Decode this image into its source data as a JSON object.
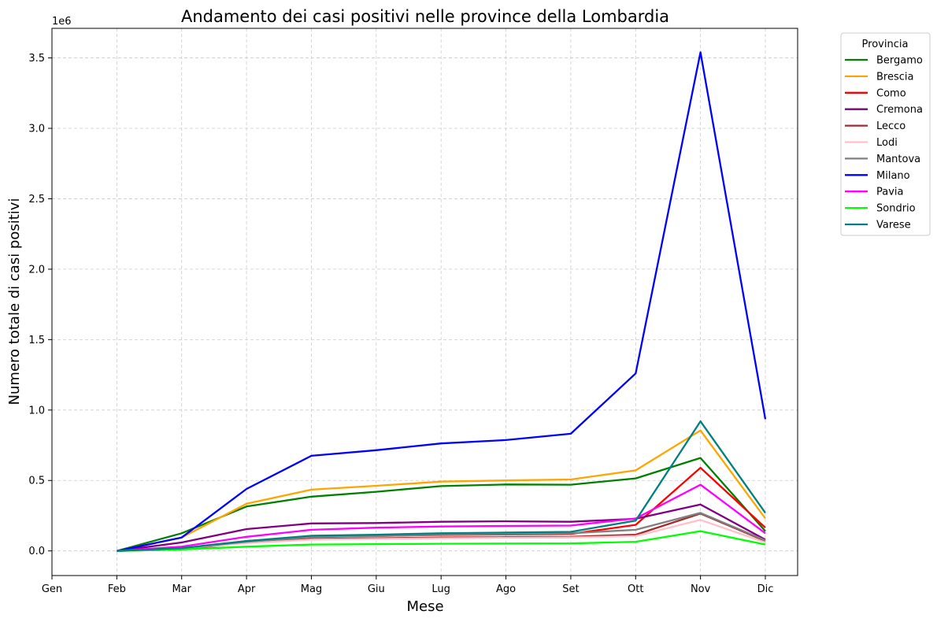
{
  "chart_data": {
    "type": "line",
    "title": "Andamento dei casi positivi nelle province della Lombardia",
    "xlabel": "Mese",
    "ylabel": "Numero totale di casi positivi",
    "y_offset_label": "1e6",
    "y_scale": 1000000,
    "ylim": [
      -175000,
      3710000
    ],
    "yticks": [
      0,
      500000,
      1000000,
      1500000,
      2000000,
      2500000,
      3000000,
      3500000
    ],
    "ytick_labels": [
      "0.0",
      "0.5",
      "1.0",
      "1.5",
      "2.0",
      "2.5",
      "3.0",
      "3.5"
    ],
    "categories": [
      "Gen",
      "Feb",
      "Mar",
      "Apr",
      "Mag",
      "Giu",
      "Lug",
      "Ago",
      "Set",
      "Ott",
      "Nov",
      "Dic"
    ],
    "grid": true,
    "legend_title": "Provincia",
    "legend_position": "outside-top-right",
    "series": [
      {
        "name": "Bergamo",
        "color": "#008000",
        "values": [
          null,
          0,
          125000,
          315000,
          385000,
          420000,
          460000,
          472000,
          470000,
          515000,
          660000,
          140000
        ]
      },
      {
        "name": "Brescia",
        "color": "#FFA500",
        "values": [
          null,
          0,
          95000,
          335000,
          435000,
          462000,
          492000,
          500000,
          507000,
          572000,
          855000,
          230000
        ]
      },
      {
        "name": "Como",
        "color": "#FF0000",
        "values": [
          null,
          0,
          15000,
          70000,
          100000,
          106000,
          113000,
          117000,
          120000,
          185000,
          590000,
          165000
        ]
      },
      {
        "name": "Cremona",
        "color": "#800080",
        "values": [
          null,
          0,
          60000,
          155000,
          195000,
          198000,
          207000,
          210000,
          207000,
          228000,
          330000,
          80000
        ]
      },
      {
        "name": "Lecco",
        "color": "#A52A2A",
        "values": [
          null,
          0,
          10000,
          60000,
          85000,
          90000,
          95000,
          98000,
          100000,
          115000,
          265000,
          70000
        ]
      },
      {
        "name": "Lodi",
        "color": "#FFC0CB",
        "values": [
          null,
          0,
          20000,
          55000,
          80000,
          85000,
          90000,
          93000,
          95000,
          105000,
          220000,
          60000
        ]
      },
      {
        "name": "Mantova",
        "color": "#808080",
        "values": [
          null,
          0,
          20000,
          65000,
          98000,
          105000,
          115000,
          120000,
          125000,
          150000,
          270000,
          75000
        ]
      },
      {
        "name": "Milano",
        "color": "#0000FF",
        "values": [
          null,
          0,
          95000,
          440000,
          675000,
          715000,
          763000,
          787000,
          832000,
          1260000,
          3540000,
          935000
        ]
      },
      {
        "name": "Pavia",
        "color": "#FF00FF",
        "values": [
          null,
          0,
          30000,
          100000,
          150000,
          165000,
          173000,
          177000,
          180000,
          230000,
          470000,
          125000
        ]
      },
      {
        "name": "Sondrio",
        "color": "#00FF00",
        "values": [
          null,
          0,
          10000,
          30000,
          45000,
          48000,
          51000,
          52000,
          53000,
          65000,
          140000,
          45000
        ]
      },
      {
        "name": "Varese",
        "color": "#008080",
        "values": [
          null,
          0,
          20000,
          70000,
          108000,
          115000,
          125000,
          130000,
          135000,
          215000,
          920000,
          270000
        ]
      }
    ]
  }
}
